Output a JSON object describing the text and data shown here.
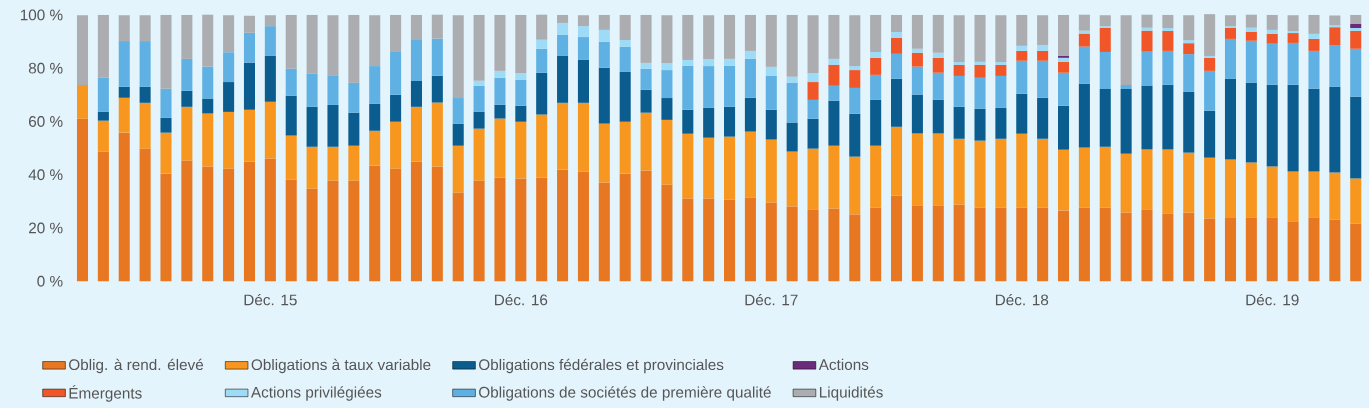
{
  "chart_data": {
    "type": "bar",
    "stacked": true,
    "legend": "bottom",
    "categories": [
      null,
      null,
      null,
      null,
      null,
      null,
      null,
      null,
      null,
      "Déc. 15",
      null,
      null,
      null,
      null,
      null,
      null,
      null,
      null,
      null,
      null,
      null,
      "Déc. 16",
      null,
      null,
      null,
      null,
      null,
      null,
      null,
      null,
      null,
      null,
      null,
      "Déc. 17",
      null,
      null,
      null,
      null,
      null,
      null,
      null,
      null,
      null,
      null,
      null,
      "Déc. 18",
      null,
      null,
      null,
      null,
      null,
      null,
      null,
      null,
      null,
      null,
      null,
      "Déc. 19",
      null,
      null,
      null,
      null
    ],
    "ylim": [
      0,
      100
    ],
    "yticks": [
      {
        "value": 0,
        "label": "0 %"
      },
      {
        "value": 20,
        "label": "20 %"
      },
      {
        "value": 40,
        "label": "40 %"
      },
      {
        "value": 60,
        "label": "60 %"
      },
      {
        "value": 80,
        "label": "80 %"
      },
      {
        "value": 100,
        "label": "100 %"
      }
    ],
    "series": [
      {
        "name": "Oblig. à rend. élevé",
        "color": "#e87722",
        "values": [
          61.0,
          48.7,
          55.8,
          49.8,
          40.4,
          45.3,
          43.1,
          42.3,
          44.9,
          46.1,
          38.2,
          34.8,
          37.8,
          37.8,
          43.4,
          42.3,
          44.9,
          43.1,
          33.3,
          37.8,
          39.0,
          38.6,
          39.0,
          41.9,
          41.2,
          37.1,
          40.4,
          41.6,
          36.3,
          31.1,
          31.1,
          30.7,
          31.5,
          29.6,
          28.1,
          27.0,
          27.3,
          25.1,
          27.7,
          32.2,
          28.5,
          28.5,
          28.8,
          27.7,
          27.7,
          27.7,
          27.7,
          26.6,
          27.7,
          27.7,
          25.8,
          27.0,
          25.5,
          25.8,
          23.6,
          24.0,
          24.0,
          24.0,
          22.5,
          24.0,
          23.2,
          21.7
        ]
      },
      {
        "name": "Obligations à taux variable",
        "color": "#f7971f",
        "values": [
          12.7,
          11.6,
          13.1,
          17.2,
          15.4,
          20.2,
          19.9,
          21.3,
          19.5,
          21.3,
          16.5,
          15.7,
          12.7,
          13.1,
          13.1,
          17.6,
          20.6,
          24.0,
          17.6,
          19.5,
          22.1,
          21.3,
          23.6,
          25.1,
          25.8,
          22.1,
          19.5,
          21.7,
          24.3,
          24.3,
          22.8,
          23.6,
          24.7,
          23.6,
          20.6,
          22.8,
          23.6,
          21.7,
          23.2,
          25.8,
          27.0,
          27.0,
          24.7,
          25.1,
          25.8,
          27.7,
          25.8,
          22.8,
          22.5,
          22.8,
          22.1,
          22.5,
          24.0,
          22.5,
          22.8,
          21.7,
          20.6,
          19.1,
          18.7,
          17.2,
          17.6,
          16.9
        ]
      },
      {
        "name": "Obligations fédérales et provinciales",
        "color": "#0b5d8f",
        "values": [
          null,
          3.4,
          4.1,
          6.0,
          5.6,
          6.0,
          5.6,
          11.2,
          17.7,
          17.2,
          15.0,
          15.0,
          15.7,
          12.4,
          10.1,
          10.1,
          9.7,
          10.1,
          8.2,
          6.4,
          5.2,
          6.0,
          15.7,
          17.6,
          16.1,
          21.0,
          18.7,
          8.6,
          8.2,
          9.0,
          11.2,
          11.2,
          12.7,
          11.2,
          10.9,
          11.2,
          16.9,
          16.1,
          17.2,
          18.0,
          14.6,
          12.7,
          12.0,
          12.0,
          11.6,
          15.0,
          15.4,
          16.5,
          24.0,
          21.7,
          24.3,
          24.0,
          24.3,
          22.8,
          17.6,
          30.3,
          30.0,
          30.7,
          32.6,
          31.1,
          32.2,
          30.7
        ]
      },
      {
        "name": "Obligations de sociétés de première qualité",
        "color": "#5fb1e3",
        "values": [
          null,
          12.7,
          17.2,
          17.2,
          10.9,
          12.0,
          12.0,
          11.2,
          11.2,
          11.2,
          10.1,
          12.4,
          10.9,
          11.2,
          14.2,
          16.1,
          15.4,
          13.9,
          9.7,
          9.7,
          10.1,
          9.7,
          9.0,
          7.9,
          8.6,
          9.7,
          9.4,
          7.9,
          10.5,
          16.5,
          15.7,
          15.4,
          14.6,
          12.7,
          15.0,
          7.1,
          5.6,
          9.7,
          9.4,
          9.4,
          10.5,
          10.1,
          11.6,
          11.6,
          12.0,
          12.4,
          13.9,
          12.4,
          13.9,
          13.9,
          1.5,
          12.7,
          12.7,
          14.2,
          15.0,
          15.0,
          15.7,
          15.4,
          15.7,
          14.2,
          15.7,
          18.0
        ]
      },
      {
        "name": "Émergents",
        "color": "#f15628",
        "values": [
          null,
          null,
          null,
          null,
          null,
          null,
          null,
          null,
          null,
          null,
          null,
          null,
          null,
          null,
          null,
          null,
          null,
          null,
          null,
          null,
          null,
          null,
          null,
          null,
          null,
          null,
          null,
          null,
          null,
          null,
          null,
          null,
          null,
          null,
          null,
          6.7,
          7.9,
          6.7,
          6.4,
          6.0,
          5.2,
          5.6,
          4.1,
          4.9,
          4.1,
          3.7,
          3.7,
          4.1,
          4.9,
          9.0,
          null,
          7.9,
          7.5,
          4.1,
          4.9,
          4.1,
          3.4,
          3.7,
          3.7,
          4.5,
          6.7,
          6.7
        ]
      },
      {
        "name": "Actions privilégiées",
        "color": "#9ddbf7",
        "values": [
          null,
          null,
          null,
          null,
          null,
          null,
          null,
          null,
          null,
          null,
          null,
          null,
          null,
          null,
          null,
          null,
          null,
          null,
          null,
          1.9,
          2.6,
          2.6,
          3.4,
          4.5,
          4.1,
          4.5,
          2.6,
          2.2,
          2.6,
          2.2,
          2.6,
          2.6,
          3.0,
          3.4,
          2.2,
          3.4,
          2.2,
          1.5,
          2.2,
          2.2,
          1.5,
          1.9,
          1.1,
          1.1,
          1.1,
          1.9,
          2.2,
          1.5,
          1.1,
          0.7,
          null,
          1.1,
          1.1,
          1.1,
          0.7,
          0.7,
          1.5,
          1.5,
          0.7,
          1.9,
          0.7,
          1.1
        ]
      },
      {
        "name": "Actions",
        "color": "#6b2a7a",
        "values": [
          null,
          null,
          null,
          null,
          null,
          null,
          null,
          null,
          null,
          null,
          null,
          null,
          null,
          null,
          null,
          null,
          null,
          null,
          null,
          null,
          null,
          null,
          null,
          null,
          null,
          null,
          null,
          null,
          null,
          null,
          null,
          null,
          null,
          null,
          null,
          null,
          null,
          null,
          null,
          null,
          null,
          null,
          null,
          null,
          null,
          null,
          null,
          0.7,
          null,
          null,
          null,
          null,
          null,
          null,
          null,
          null,
          null,
          null,
          null,
          null,
          null,
          1.5
        ]
      },
      {
        "name": "Liquidités",
        "color": "#abadb0",
        "values": [
          26.2,
          23.6,
          9.7,
          9.7,
          27.7,
          16.5,
          19.5,
          13.9,
          6.4,
          4.1,
          20.2,
          22.1,
          22.8,
          25.5,
          19.1,
          13.9,
          9.4,
          9.0,
          31.1,
          24.7,
          21.0,
          21.8,
          9.4,
          3.0,
          4.1,
          5.6,
          9.4,
          18.0,
          18.0,
          16.9,
          16.5,
          16.5,
          13.5,
          19.5,
          23.2,
          21.7,
          16.5,
          19.1,
          13.9,
          6.4,
          12.7,
          14.2,
          17.6,
          17.6,
          17.6,
          11.6,
          11.2,
          15.4,
          6.0,
          4.1,
          26.2,
          4.9,
          4.9,
          9.4,
          15.7,
          4.1,
          4.9,
          5.6,
          6.0,
          7.1,
          3.7,
          3.4
        ]
      }
    ]
  }
}
